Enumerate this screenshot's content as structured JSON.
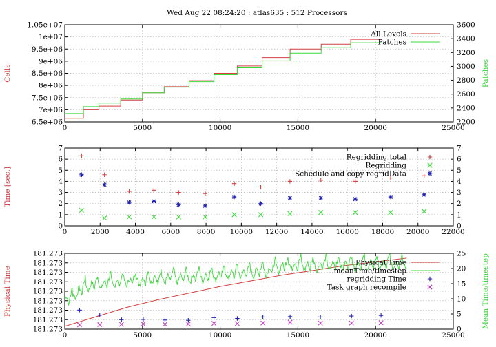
{
  "title": "Wed Aug 22 08:24:20 : atlas635 : 512 Processors",
  "colors": {
    "red": "#d04040",
    "green": "#3cd83c",
    "blue": "#2020b0",
    "magenta": "#c040c0"
  },
  "chart_data": [
    {
      "type": "line",
      "ylabel": "Cells",
      "y2label": "Patches",
      "xlim": [
        0,
        25000
      ],
      "ylim": [
        6500000,
        10500000
      ],
      "y2lim": [
        2200,
        3600
      ],
      "xticks": [
        "0",
        "5000",
        "10000",
        "15000",
        "20000",
        "25000"
      ],
      "yticks": [
        "6.5e+06",
        "7e+06",
        "7.5e+06",
        "8e+06",
        "8.5e+06",
        "9e+06",
        "9.5e+06",
        "1e+07",
        "1.05e+07"
      ],
      "y2ticks": [
        "2200",
        "2400",
        "2600",
        "2800",
        "3000",
        "3200",
        "3400",
        "3600"
      ],
      "grid": true,
      "legend_position": "top-right",
      "series": [
        {
          "name": "All Levels",
          "color": "#d04040",
          "step": true,
          "x": [
            0,
            1200,
            2200,
            3600,
            5000,
            6400,
            8000,
            9600,
            11100,
            12700,
            14500,
            16500,
            18400,
            20400
          ],
          "y": [
            6650000,
            7000000,
            7150000,
            7400000,
            7700000,
            7950000,
            8200000,
            8500000,
            8800000,
            9150000,
            9500000,
            9700000,
            9900000,
            9900000
          ]
        },
        {
          "name": "Patches",
          "axis": "right",
          "color": "#3cd83c",
          "step": true,
          "x": [
            0,
            1200,
            2200,
            3600,
            5000,
            6400,
            8000,
            9600,
            11100,
            12700,
            14500,
            16500,
            18400,
            20400
          ],
          "y": [
            2320,
            2420,
            2470,
            2530,
            2620,
            2700,
            2780,
            2880,
            2980,
            3080,
            3190,
            3270,
            3340,
            3340
          ]
        }
      ]
    },
    {
      "type": "scatter",
      "ylabel": "Time [sec.]",
      "xlim": [
        0,
        22000
      ],
      "ylim": [
        0,
        7
      ],
      "xticks": [
        "0",
        "2000",
        "4000",
        "6000",
        "8000",
        "10000",
        "12000",
        "14000",
        "16000",
        "18000",
        "20000",
        "22000"
      ],
      "yticks": [
        "0",
        "1",
        "2",
        "3",
        "4",
        "5",
        "6",
        "7"
      ],
      "y2ticks": [
        "0",
        "1",
        "2",
        "3",
        "4",
        "5",
        "6",
        "7"
      ],
      "grid": true,
      "legend_position": "top-right",
      "series": [
        {
          "name": "Regridding total",
          "color": "#d04040",
          "marker": "plus",
          "x": [
            950,
            2250,
            3650,
            5050,
            6450,
            7950,
            9600,
            11100,
            12750,
            14500,
            16450,
            18450,
            20350
          ],
          "y": [
            6.3,
            4.6,
            3.1,
            3.2,
            3.0,
            2.9,
            3.8,
            3.5,
            4.0,
            4.1,
            4.0,
            4.3,
            4.5
          ]
        },
        {
          "name": "Regridding",
          "color": "#3cd83c",
          "marker": "cross",
          "x": [
            950,
            2250,
            3650,
            5050,
            6450,
            7950,
            9600,
            11100,
            12750,
            14500,
            16450,
            18450,
            20350
          ],
          "y": [
            1.4,
            0.7,
            0.8,
            0.8,
            0.8,
            0.8,
            1.0,
            1.0,
            1.1,
            1.2,
            1.2,
            1.2,
            1.3
          ]
        },
        {
          "name": "Schedule and copy regridData",
          "color": "#2020b0",
          "marker": "star",
          "x": [
            950,
            2250,
            3650,
            5050,
            6450,
            7950,
            9600,
            11100,
            12750,
            14500,
            16450,
            18450,
            20350
          ],
          "y": [
            4.6,
            3.7,
            2.1,
            2.2,
            1.9,
            1.8,
            2.6,
            2.0,
            2.5,
            2.5,
            2.4,
            2.6,
            2.8
          ]
        }
      ]
    },
    {
      "type": "line",
      "ylabel": "Physical Time",
      "y2label": "Mean Time/timestep",
      "xlim": [
        0,
        25000
      ],
      "ylim": [
        0,
        8
      ],
      "y2lim": [
        0,
        25
      ],
      "xticks": [
        "0",
        "5000",
        "10000",
        "15000",
        "20000",
        "25000"
      ],
      "yticks": [
        "181.273",
        "181.273",
        "181.273",
        "181.273",
        "181.273",
        "181.273",
        "181.273",
        "181.273",
        "181.273"
      ],
      "y2ticks": [
        "0",
        "5",
        "10",
        "15",
        "20",
        "25"
      ],
      "grid": true,
      "legend_position": "top-right",
      "series": [
        {
          "name": "Physical Time",
          "color": "#d04040",
          "x": [
            0,
            2000,
            4000,
            6000,
            8000,
            10000,
            12000,
            14000,
            16000,
            18000,
            20000,
            22000
          ],
          "y": [
            0.3,
            1.3,
            2.3,
            3.1,
            3.8,
            4.5,
            5.1,
            5.7,
            6.2,
            6.7,
            7.1,
            7.5
          ]
        },
        {
          "name": "meanTime/timestep",
          "axis": "right",
          "color": "#3cd83c",
          "noisy": true,
          "x": [
            0,
            300,
            800,
            1500,
            3000,
            5000,
            7000,
            9000,
            11000,
            13000,
            14500,
            16000,
            18000,
            20000,
            22000
          ],
          "y": [
            10,
            9,
            12,
            14,
            15,
            16,
            16.5,
            17,
            18,
            19,
            21,
            20.5,
            21,
            21,
            21.5
          ]
        },
        {
          "name": "regridding Time",
          "axis": "right",
          "color": "#2020b0",
          "marker": "plus",
          "x": [
            950,
            2250,
            3650,
            5050,
            6450,
            7950,
            9600,
            11100,
            12750,
            14500,
            16450,
            18450,
            20350
          ],
          "y": [
            6.3,
            4.6,
            3.1,
            3.2,
            3.0,
            2.9,
            3.8,
            3.5,
            4.0,
            4.1,
            4.0,
            4.3,
            4.5
          ]
        },
        {
          "name": "Task graph recompile",
          "axis": "right",
          "color": "#c040c0",
          "marker": "cross",
          "x": [
            950,
            2250,
            3650,
            5050,
            6450,
            7950,
            9600,
            11100,
            12750,
            14500,
            16450,
            18450,
            20350
          ],
          "y": [
            1.4,
            1.5,
            1.6,
            1.7,
            1.6,
            1.7,
            1.9,
            1.8,
            2.0,
            2.3,
            2.0,
            2.0,
            2.1
          ]
        }
      ]
    }
  ]
}
